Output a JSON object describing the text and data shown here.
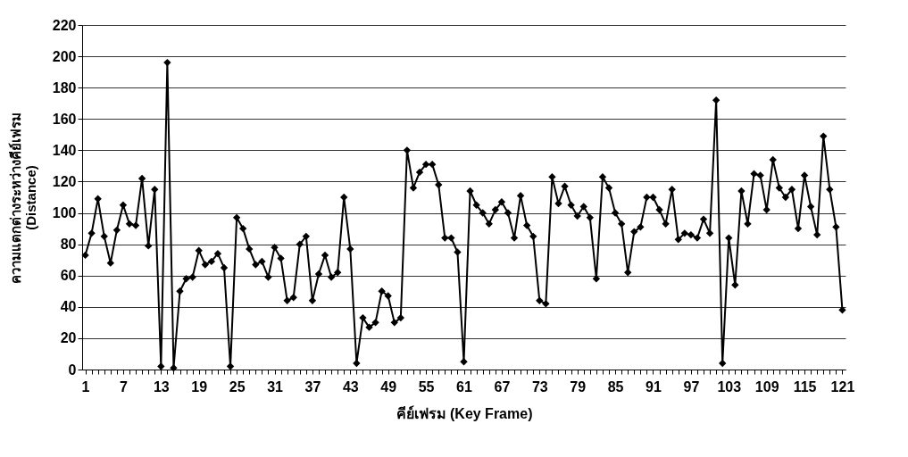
{
  "chart_data": {
    "type": "line",
    "xlabel": "คีย์เฟรม (Key Frame)",
    "ylabel": "ความแตกต่างระหว่างคีย์เฟรม\n(Distance)",
    "categories": [
      "1",
      null,
      null,
      null,
      null,
      null,
      "7",
      null,
      null,
      null,
      null,
      null,
      "13",
      null,
      null,
      null,
      null,
      null,
      "19",
      null,
      null,
      null,
      null,
      null,
      "25",
      null,
      null,
      null,
      null,
      null,
      "31",
      null,
      null,
      null,
      null,
      null,
      "37",
      null,
      null,
      null,
      null,
      null,
      "43",
      null,
      null,
      null,
      null,
      null,
      "49",
      null,
      null,
      null,
      null,
      null,
      "55",
      null,
      null,
      null,
      null,
      null,
      "61",
      null,
      null,
      null,
      null,
      null,
      "67",
      null,
      null,
      null,
      null,
      null,
      "73",
      null,
      null,
      null,
      null,
      null,
      "79",
      null,
      null,
      null,
      null,
      null,
      "85",
      null,
      null,
      null,
      null,
      null,
      "91",
      null,
      null,
      null,
      null,
      null,
      "97",
      null,
      null,
      null,
      null,
      null,
      "103",
      null,
      null,
      null,
      null,
      null,
      "109",
      null,
      null,
      null,
      null,
      null,
      "115",
      null,
      null,
      null,
      null,
      null,
      "121"
    ],
    "series": [
      {
        "color": "#000000",
        "values": [
          73,
          87,
          109,
          85,
          68,
          89,
          105,
          93,
          92,
          122,
          79,
          115,
          2,
          196,
          1,
          50,
          58,
          59,
          76,
          67,
          69,
          74,
          65,
          2,
          97,
          90,
          77,
          67,
          69,
          59,
          78,
          71,
          44,
          46,
          80,
          85,
          44,
          61,
          73,
          59,
          62,
          110,
          77,
          4,
          33,
          27,
          30,
          50,
          47,
          30,
          33,
          140,
          116,
          126,
          131,
          131,
          118,
          84,
          84,
          75,
          5,
          114,
          105,
          100,
          93,
          102,
          107,
          100,
          84,
          111,
          92,
          85,
          44,
          42,
          123,
          106,
          117,
          105,
          98,
          104,
          97,
          58,
          123,
          116,
          100,
          93,
          62,
          88,
          91,
          110,
          110,
          102,
          93,
          115,
          83,
          87,
          86,
          84,
          96,
          87,
          172,
          4,
          84,
          54,
          114,
          93,
          125,
          124,
          102,
          134,
          116,
          110,
          115,
          90,
          124,
          104,
          86,
          149,
          115,
          91,
          38
        ]
      }
    ],
    "ylim": [
      0,
      220
    ],
    "yticks": [
      0,
      20,
      40,
      60,
      80,
      100,
      120,
      140,
      160,
      180,
      200,
      220
    ],
    "grid": "y",
    "marker": "diamond",
    "line_style": "solid"
  }
}
